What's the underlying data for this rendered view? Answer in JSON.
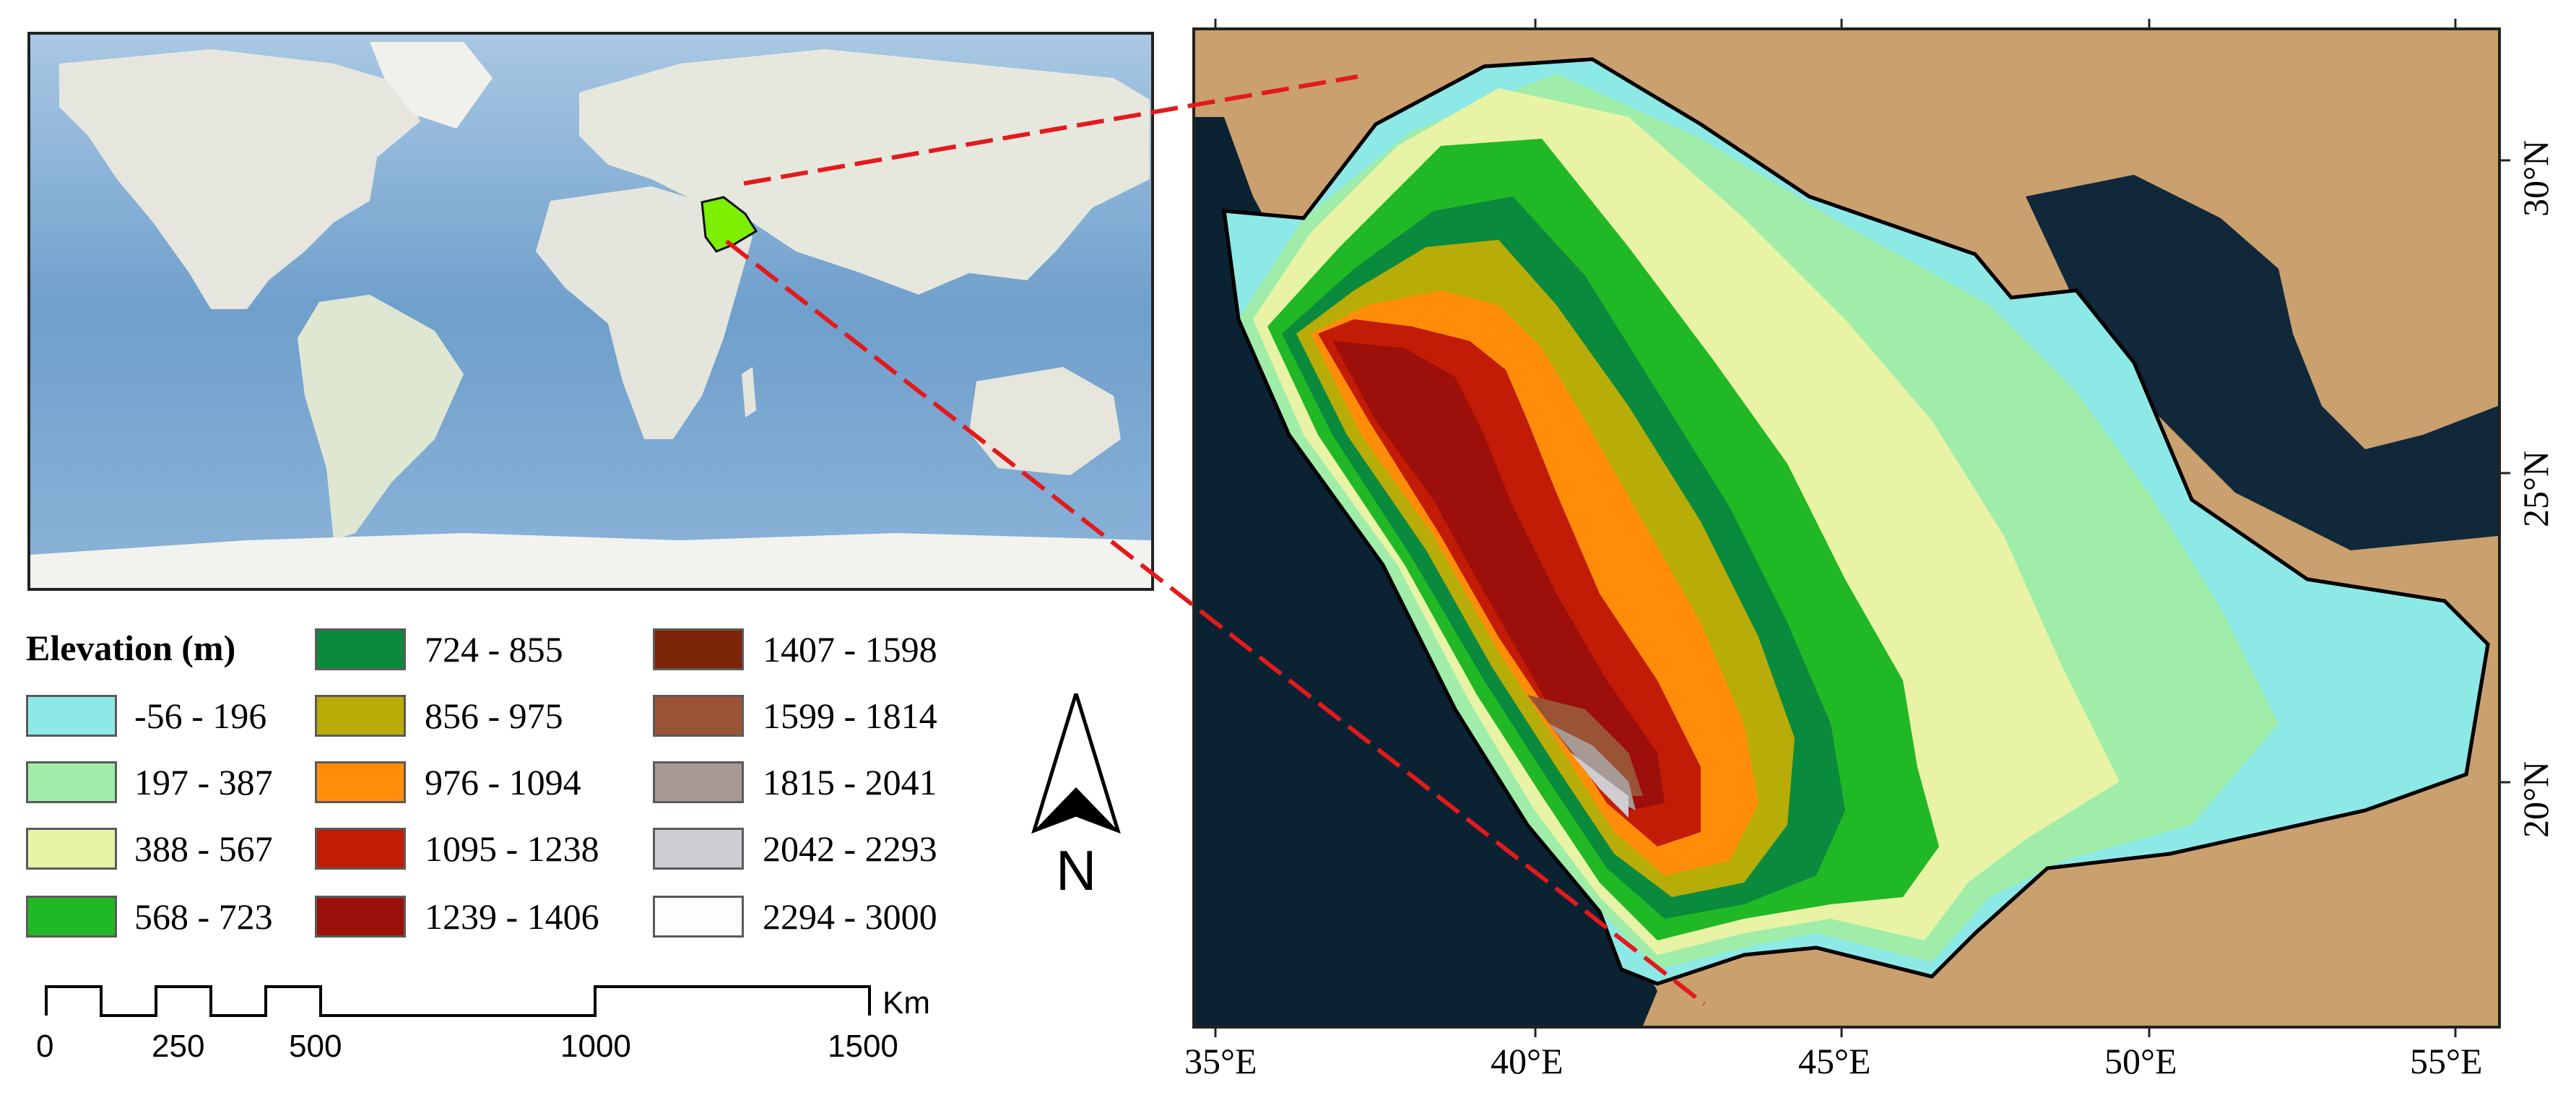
{
  "legend": {
    "title": "Elevation (m)",
    "classes": [
      {
        "label": "-56 - 196",
        "color": "#8de9e6"
      },
      {
        "label": "197 - 387",
        "color": "#a0eda9"
      },
      {
        "label": "388 - 567",
        "color": "#e8f3a6"
      },
      {
        "label": "568 - 723",
        "color": "#21b825"
      },
      {
        "label": "724 - 855",
        "color": "#0a8a3d"
      },
      {
        "label": "856 - 975",
        "color": "#b7ac08"
      },
      {
        "label": "976 - 1094",
        "color": "#ff8d0a"
      },
      {
        "label": "1095 - 1238",
        "color": "#c21b06"
      },
      {
        "label": "1239 - 1406",
        "color": "#9c0f0a"
      },
      {
        "label": "1407 - 1598",
        "color": "#7b2407"
      },
      {
        "label": "1599 - 1814",
        "color": "#9a5435"
      },
      {
        "label": "1815 - 2041",
        "color": "#a79a94"
      },
      {
        "label": "2042 - 2293",
        "color": "#cfcdd1"
      },
      {
        "label": "2294 - 3000",
        "color": "#fdfdfd"
      }
    ]
  },
  "north_arrow": {
    "label": "N"
  },
  "scale_bar": {
    "unit": "Km",
    "labels": [
      "0",
      "250",
      "500",
      "1000",
      "1500"
    ]
  },
  "axes": {
    "longitude_labels": [
      "35°E",
      "40°E",
      "45°E",
      "50°E",
      "55°E"
    ],
    "latitude_labels": [
      "30°N",
      "25°N",
      "20°N"
    ]
  },
  "colors": {
    "highlight_country": "#7cf000",
    "leader_line": "#e31a1c",
    "sea": "#0b2233",
    "desert": "#c9a06e"
  }
}
